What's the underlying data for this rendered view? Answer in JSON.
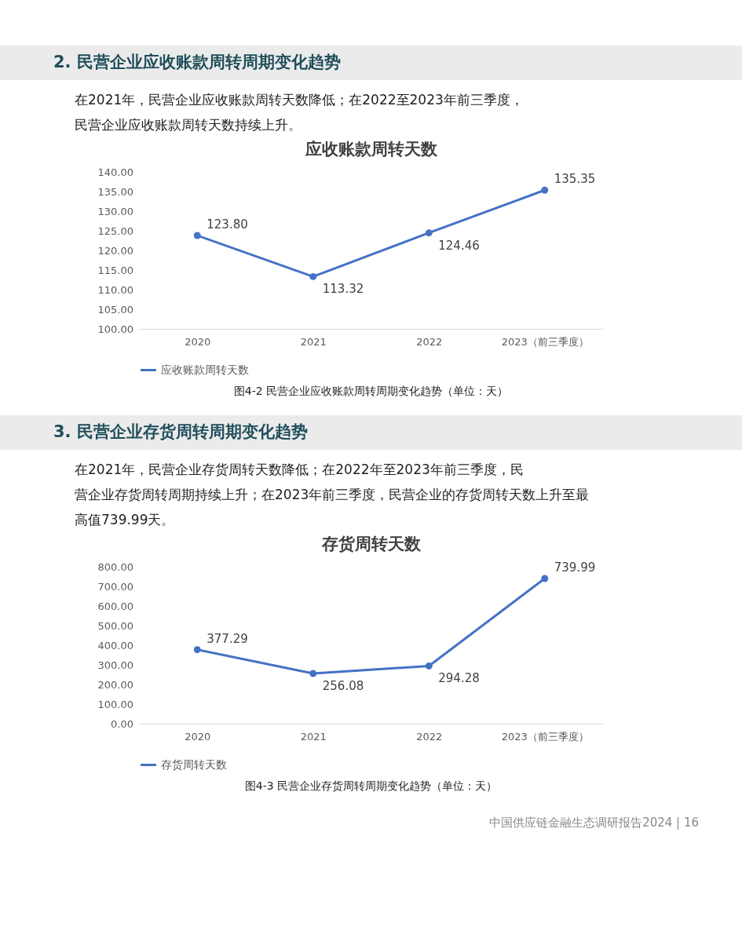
{
  "chart_data": [
    {
      "type": "line",
      "title": "应收账款周转天数",
      "categories": [
        "2020",
        "2021",
        "2022",
        "2023（前三季度）"
      ],
      "series": [
        {
          "name": "应收账款周转天数",
          "color": "#4472c4",
          "values": [
            123.8,
            113.32,
            124.46,
            135.35
          ],
          "value_labels": [
            "123.80",
            "113.32",
            "124.46",
            "135.35"
          ]
        }
      ],
      "ylim": [
        100,
        140
      ],
      "yticks": [
        {
          "value": 100,
          "label": "100.00"
        },
        {
          "value": 105,
          "label": "105.00"
        },
        {
          "value": 110,
          "label": "110.00"
        },
        {
          "value": 115,
          "label": "115.00"
        },
        {
          "value": 120,
          "label": "120.00"
        },
        {
          "value": 125,
          "label": "125.00"
        },
        {
          "value": 130,
          "label": "130.00"
        },
        {
          "value": 135,
          "label": "135.00"
        },
        {
          "value": 140,
          "label": "140.00"
        }
      ],
      "grid": false,
      "legend": "bottom",
      "marker": "circle",
      "line_style": "solid",
      "annotations": [
        "2. 民营企业应收账款周转周期变化趋势",
        "在2021年，民营企业应收账款周转天数降低；在2022至2023年前三季度，民营企业应收账款周转天数持续上升。",
        "图4-2 民营企业应收账款周转周期变化趋势（单位：天）"
      ]
    },
    {
      "type": "line",
      "title": "存货周转天数",
      "categories": [
        "2020",
        "2021",
        "2022",
        "2023（前三季度）"
      ],
      "series": [
        {
          "name": "存货周转天数",
          "color": "#4472c4",
          "values": [
            377.29,
            256.08,
            294.28,
            739.99
          ],
          "value_labels": [
            "377.29",
            "256.08",
            "294.28",
            "739.99"
          ]
        }
      ],
      "ylim": [
        0,
        800
      ],
      "yticks": [
        {
          "value": 0,
          "label": "0.00"
        },
        {
          "value": 100,
          "label": "100.00"
        },
        {
          "value": 200,
          "label": "200.00"
        },
        {
          "value": 300,
          "label": "300.00"
        },
        {
          "value": 400,
          "label": "400.00"
        },
        {
          "value": 500,
          "label": "500.00"
        },
        {
          "value": 600,
          "label": "600.00"
        },
        {
          "value": 700,
          "label": "700.00"
        },
        {
          "value": 800,
          "label": "800.00"
        }
      ],
      "grid": false,
      "legend": "bottom",
      "marker": "circle",
      "line_style": "solid",
      "annotations": [
        "3. 民营企业存货周转周期变化趋势",
        "在2021年，民营企业存货周转天数降低；在2022年至2023年前三季度，民营企业存货周转周期持续上升；在2023年前三季度，民营企业的存货周转天数上升至最高值739.99天。",
        "图4-3 民营企业存货周转周期变化趋势（单位：天）",
        "中国供应链金融生态调研报告2024 | 16"
      ]
    }
  ]
}
